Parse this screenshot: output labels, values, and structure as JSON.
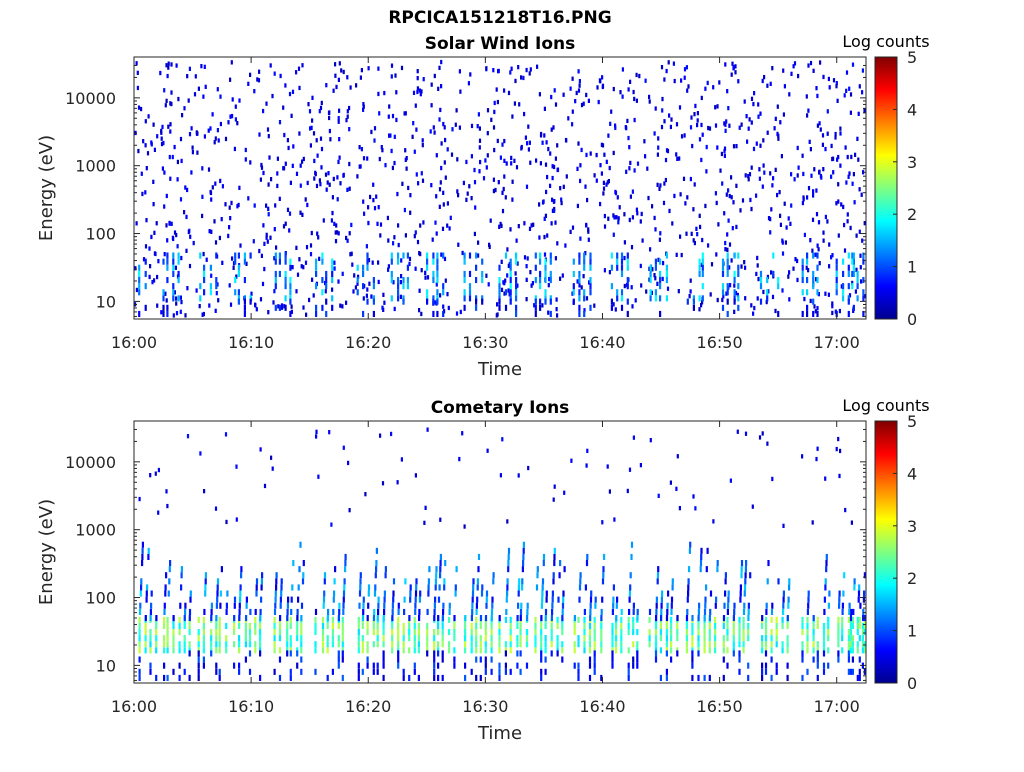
{
  "figure": {
    "title": "RPCICA151218T16.PNG"
  },
  "chart_data": [
    {
      "type": "heatmap",
      "title": "Solar Wind Ions",
      "xlabel": "Time",
      "ylabel": "Energy (eV)",
      "x_tick_labels": [
        "16:00",
        "16:10",
        "16:20",
        "16:30",
        "16:40",
        "16:50",
        "17:00"
      ],
      "x_tick_minutes": [
        0,
        10,
        20,
        30,
        40,
        50,
        60
      ],
      "xlim_minutes": [
        0,
        62.5
      ],
      "y_scale": "log",
      "y_tick_labels": [
        "10",
        "100",
        "1000",
        "10000"
      ],
      "y_tick_values": [
        10,
        100,
        1000,
        10000
      ],
      "ylim": [
        5.5,
        40000
      ],
      "colorbar": {
        "label": "Log counts",
        "ticks": [
          "0",
          "1",
          "2",
          "3",
          "4",
          "5"
        ],
        "range": [
          0,
          5
        ],
        "colormap": "jet"
      },
      "features": {
        "low_energy_bursts_minutes": [
          0.3,
          3.2,
          6.3,
          9.3,
          12.8,
          16.3,
          19.8,
          22.8,
          25.8,
          29.0,
          32.0,
          35.0,
          38.3,
          41.5,
          44.8,
          48.0,
          51.0,
          54.3,
          57.8,
          60.8,
          62.0
        ],
        "low_energy_band_eV": [
          10,
          45
        ],
        "band_log_counts": 1.3,
        "background": "sparse scattered single counts from 6 eV to 30000 eV",
        "background_log_counts": 0.3
      }
    },
    {
      "type": "heatmap",
      "title": "Cometary Ions",
      "xlabel": "Time",
      "ylabel": "Energy (eV)",
      "x_tick_labels": [
        "16:00",
        "16:10",
        "16:20",
        "16:30",
        "16:40",
        "16:50",
        "17:00"
      ],
      "x_tick_minutes": [
        0,
        10,
        20,
        30,
        40,
        50,
        60
      ],
      "xlim_minutes": [
        0,
        62.5
      ],
      "y_scale": "log",
      "y_tick_labels": [
        "10",
        "100",
        "1000",
        "10000"
      ],
      "y_tick_values": [
        10,
        100,
        1000,
        10000
      ],
      "ylim": [
        5.5,
        40000
      ],
      "colorbar": {
        "label": "Log counts",
        "ticks": [
          "0",
          "1",
          "2",
          "3",
          "4",
          "5"
        ],
        "range": [
          0,
          5
        ],
        "colormap": "jet"
      },
      "features": {
        "bursts_minutes": [
          0.3,
          3.2,
          6.3,
          9.3,
          12.8,
          16.3,
          19.8,
          22.8,
          25.8,
          29.0,
          32.0,
          35.0,
          38.3,
          41.5,
          44.8,
          48.0,
          51.0,
          54.3,
          57.8,
          60.8,
          62.0
        ],
        "core_band_eV": [
          15,
          45
        ],
        "core_log_counts": 2.3,
        "burst_tail_eV": [
          45,
          600
        ],
        "background": "sparse scattered counts above 1000 eV",
        "background_log_counts": 0.3
      }
    }
  ]
}
